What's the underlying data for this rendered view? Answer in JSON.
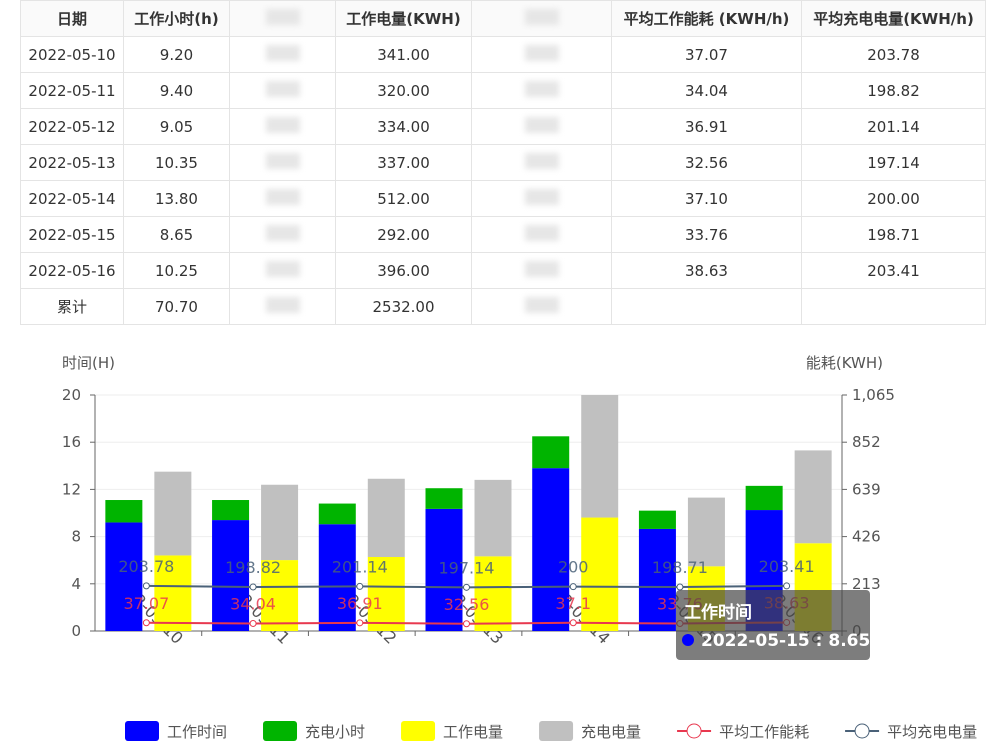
{
  "table": {
    "header": [
      "日期",
      "工作小时(h)",
      null,
      "工作电量(KWH)",
      null,
      "平均工作能耗 (KWH/h)",
      "平均充电电量(KWH/h)"
    ],
    "rows": [
      [
        "2022-05-10",
        "9.20",
        null,
        "341.00",
        null,
        "37.07",
        "203.78"
      ],
      [
        "2022-05-11",
        "9.40",
        null,
        "320.00",
        null,
        "34.04",
        "198.82"
      ],
      [
        "2022-05-12",
        "9.05",
        null,
        "334.00",
        null,
        "36.91",
        "201.14"
      ],
      [
        "2022-05-13",
        "10.35",
        null,
        "337.00",
        null,
        "32.56",
        "197.14"
      ],
      [
        "2022-05-14",
        "13.80",
        null,
        "512.00",
        null,
        "37.10",
        "200.00"
      ],
      [
        "2022-05-15",
        "8.65",
        null,
        "292.00",
        null,
        "33.76",
        "198.71"
      ],
      [
        "2022-05-16",
        "10.25",
        null,
        "396.00",
        null,
        "38.63",
        "203.41"
      ],
      [
        "累计",
        "70.70",
        null,
        "2532.00",
        null,
        null,
        null
      ]
    ]
  },
  "chart_data": {
    "type": "bar",
    "ylabel": "时间(H)",
    "y2label": "能耗(KWH)",
    "categories": [
      "2022-05-10",
      "2022-05-11",
      "2022-05-12",
      "2022-05-13",
      "2022-05-14",
      "2022-05-15",
      "2022-05-16"
    ],
    "ylim": [
      0,
      20
    ],
    "yticks": [
      0,
      4,
      8,
      12,
      16,
      20
    ],
    "y2lim": [
      0,
      1065
    ],
    "y2ticks": [
      0,
      213,
      426,
      639,
      852,
      {
        "value": 1065,
        "label": "1,065"
      }
    ],
    "grid": true,
    "series": [
      {
        "name": "工作时间",
        "type": "bar",
        "stack": "hours",
        "color": "#0000ff",
        "values": [
          9.2,
          9.4,
          9.05,
          10.35,
          13.8,
          8.65,
          10.25
        ]
      },
      {
        "name": "充电小时",
        "type": "bar",
        "stack": "hours",
        "color": "#00b400",
        "values": [
          1.9,
          1.7,
          1.75,
          1.75,
          2.7,
          1.55,
          2.05
        ]
      },
      {
        "name": "工作电量",
        "type": "bar",
        "stack": "energy",
        "axis": "y2",
        "color": "#ffff00",
        "values": [
          341,
          320,
          334,
          337,
          512,
          292,
          396
        ]
      },
      {
        "name": "充电电量",
        "type": "bar",
        "stack": "energy",
        "axis": "y2",
        "color": "#c0c0c0",
        "values": [
          378,
          340,
          353,
          345,
          553,
          310,
          419
        ]
      },
      {
        "name": "平均工作能耗",
        "type": "line",
        "axis": "y2",
        "color": "#e8384f",
        "values": [
          37.07,
          34.04,
          36.91,
          32.56,
          37.1,
          33.76,
          38.63
        ]
      },
      {
        "name": "平均充电电量",
        "type": "line",
        "axis": "y2",
        "color": "#4a6178",
        "values": [
          203.78,
          198.82,
          201.14,
          197.14,
          200,
          198.71,
          203.41
        ]
      }
    ],
    "tooltip": {
      "series": 0,
      "index": 5
    }
  }
}
